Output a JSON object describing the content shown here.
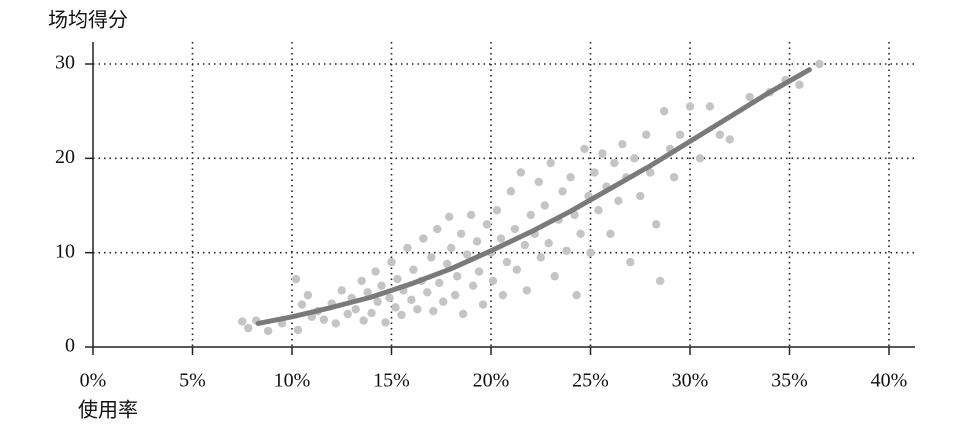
{
  "chart_data": {
    "type": "scatter",
    "y_label": "场均得分",
    "x_label": "使用率",
    "xlim": [
      0,
      40
    ],
    "ylim": [
      0,
      30
    ],
    "xticks": [
      {
        "value": 0,
        "label": "0%"
      },
      {
        "value": 5,
        "label": "5%"
      },
      {
        "value": 10,
        "label": "10%"
      },
      {
        "value": 15,
        "label": "15%"
      },
      {
        "value": 20,
        "label": "20%"
      },
      {
        "value": 25,
        "label": "25%"
      },
      {
        "value": 30,
        "label": "30%"
      },
      {
        "value": 35,
        "label": "35%"
      },
      {
        "value": 40,
        "label": "40%"
      }
    ],
    "yticks": [
      0,
      10,
      20,
      30
    ],
    "grid": true,
    "points": {
      "color": "#c4c4c4",
      "x": [
        7.5,
        7.8,
        8.2,
        8.8,
        9.5,
        10.2,
        10.3,
        10.5,
        10.8,
        11.0,
        11.3,
        11.6,
        12.0,
        12.2,
        12.5,
        12.8,
        13.0,
        13.2,
        13.5,
        13.6,
        13.8,
        14.0,
        14.2,
        14.3,
        14.5,
        14.7,
        14.9,
        15.0,
        15.2,
        15.3,
        15.5,
        15.6,
        15.8,
        16.0,
        16.1,
        16.3,
        16.5,
        16.6,
        16.8,
        17.0,
        17.1,
        17.3,
        17.4,
        17.6,
        17.8,
        17.9,
        18.0,
        18.2,
        18.3,
        18.5,
        18.6,
        18.8,
        19.0,
        19.1,
        19.3,
        19.4,
        19.6,
        19.8,
        20.0,
        20.1,
        20.3,
        20.5,
        20.6,
        20.8,
        21.0,
        21.2,
        21.3,
        21.5,
        21.7,
        21.8,
        22.0,
        22.2,
        22.4,
        22.5,
        22.7,
        22.9,
        23.0,
        23.2,
        23.4,
        23.6,
        23.8,
        24.0,
        24.2,
        24.3,
        24.5,
        24.7,
        24.9,
        25.0,
        25.2,
        25.4,
        25.6,
        25.8,
        26.0,
        26.2,
        26.4,
        26.6,
        26.8,
        27.0,
        27.2,
        27.5,
        27.8,
        28.0,
        28.3,
        28.5,
        28.7,
        29.0,
        29.2,
        29.5,
        30.0,
        30.5,
        31.0,
        31.5,
        32.0,
        33.0,
        34.0,
        34.8,
        35.5,
        36.5
      ],
      "y": [
        2.7,
        2.0,
        2.8,
        1.7,
        2.5,
        7.2,
        1.8,
        4.5,
        5.5,
        3.2,
        3.8,
        2.9,
        4.6,
        2.5,
        6.0,
        3.5,
        5.2,
        4.0,
        7.0,
        2.8,
        5.8,
        3.6,
        8.0,
        4.8,
        6.5,
        2.6,
        5.2,
        9.0,
        4.2,
        7.2,
        3.4,
        6.0,
        10.5,
        5.0,
        8.2,
        4.0,
        7.0,
        11.5,
        5.8,
        9.5,
        3.8,
        12.5,
        6.8,
        4.8,
        8.8,
        13.8,
        10.5,
        5.5,
        7.5,
        12.0,
        3.5,
        9.8,
        14.0,
        6.5,
        11.2,
        8.0,
        4.5,
        13.0,
        10.0,
        7.0,
        14.5,
        11.5,
        5.5,
        9.0,
        16.5,
        12.5,
        8.2,
        18.5,
        10.8,
        6.0,
        14.0,
        12.0,
        17.5,
        9.5,
        15.0,
        11.0,
        19.5,
        7.5,
        13.5,
        16.5,
        10.2,
        18.0,
        14.0,
        5.5,
        12.0,
        21.0,
        16.0,
        10.0,
        18.5,
        14.5,
        20.5,
        17.0,
        12.0,
        19.5,
        15.5,
        21.5,
        18.0,
        9.0,
        20.0,
        16.0,
        22.5,
        18.5,
        13.0,
        7.0,
        25.0,
        21.0,
        18.0,
        22.5,
        25.5,
        20.0,
        25.5,
        22.5,
        22.0,
        26.5,
        27.0,
        28.3,
        27.8,
        30.0
      ]
    },
    "fit": {
      "color": "#7a7a7a",
      "x": [
        8.3,
        10,
        12,
        14,
        16,
        18,
        20,
        22,
        24,
        26,
        28,
        30,
        32,
        34,
        36
      ],
      "y": [
        2.5,
        3.2,
        4.2,
        5.3,
        6.7,
        8.3,
        10.2,
        12.2,
        14.4,
        16.8,
        19.2,
        21.8,
        24.4,
        27.0,
        29.4
      ]
    }
  }
}
